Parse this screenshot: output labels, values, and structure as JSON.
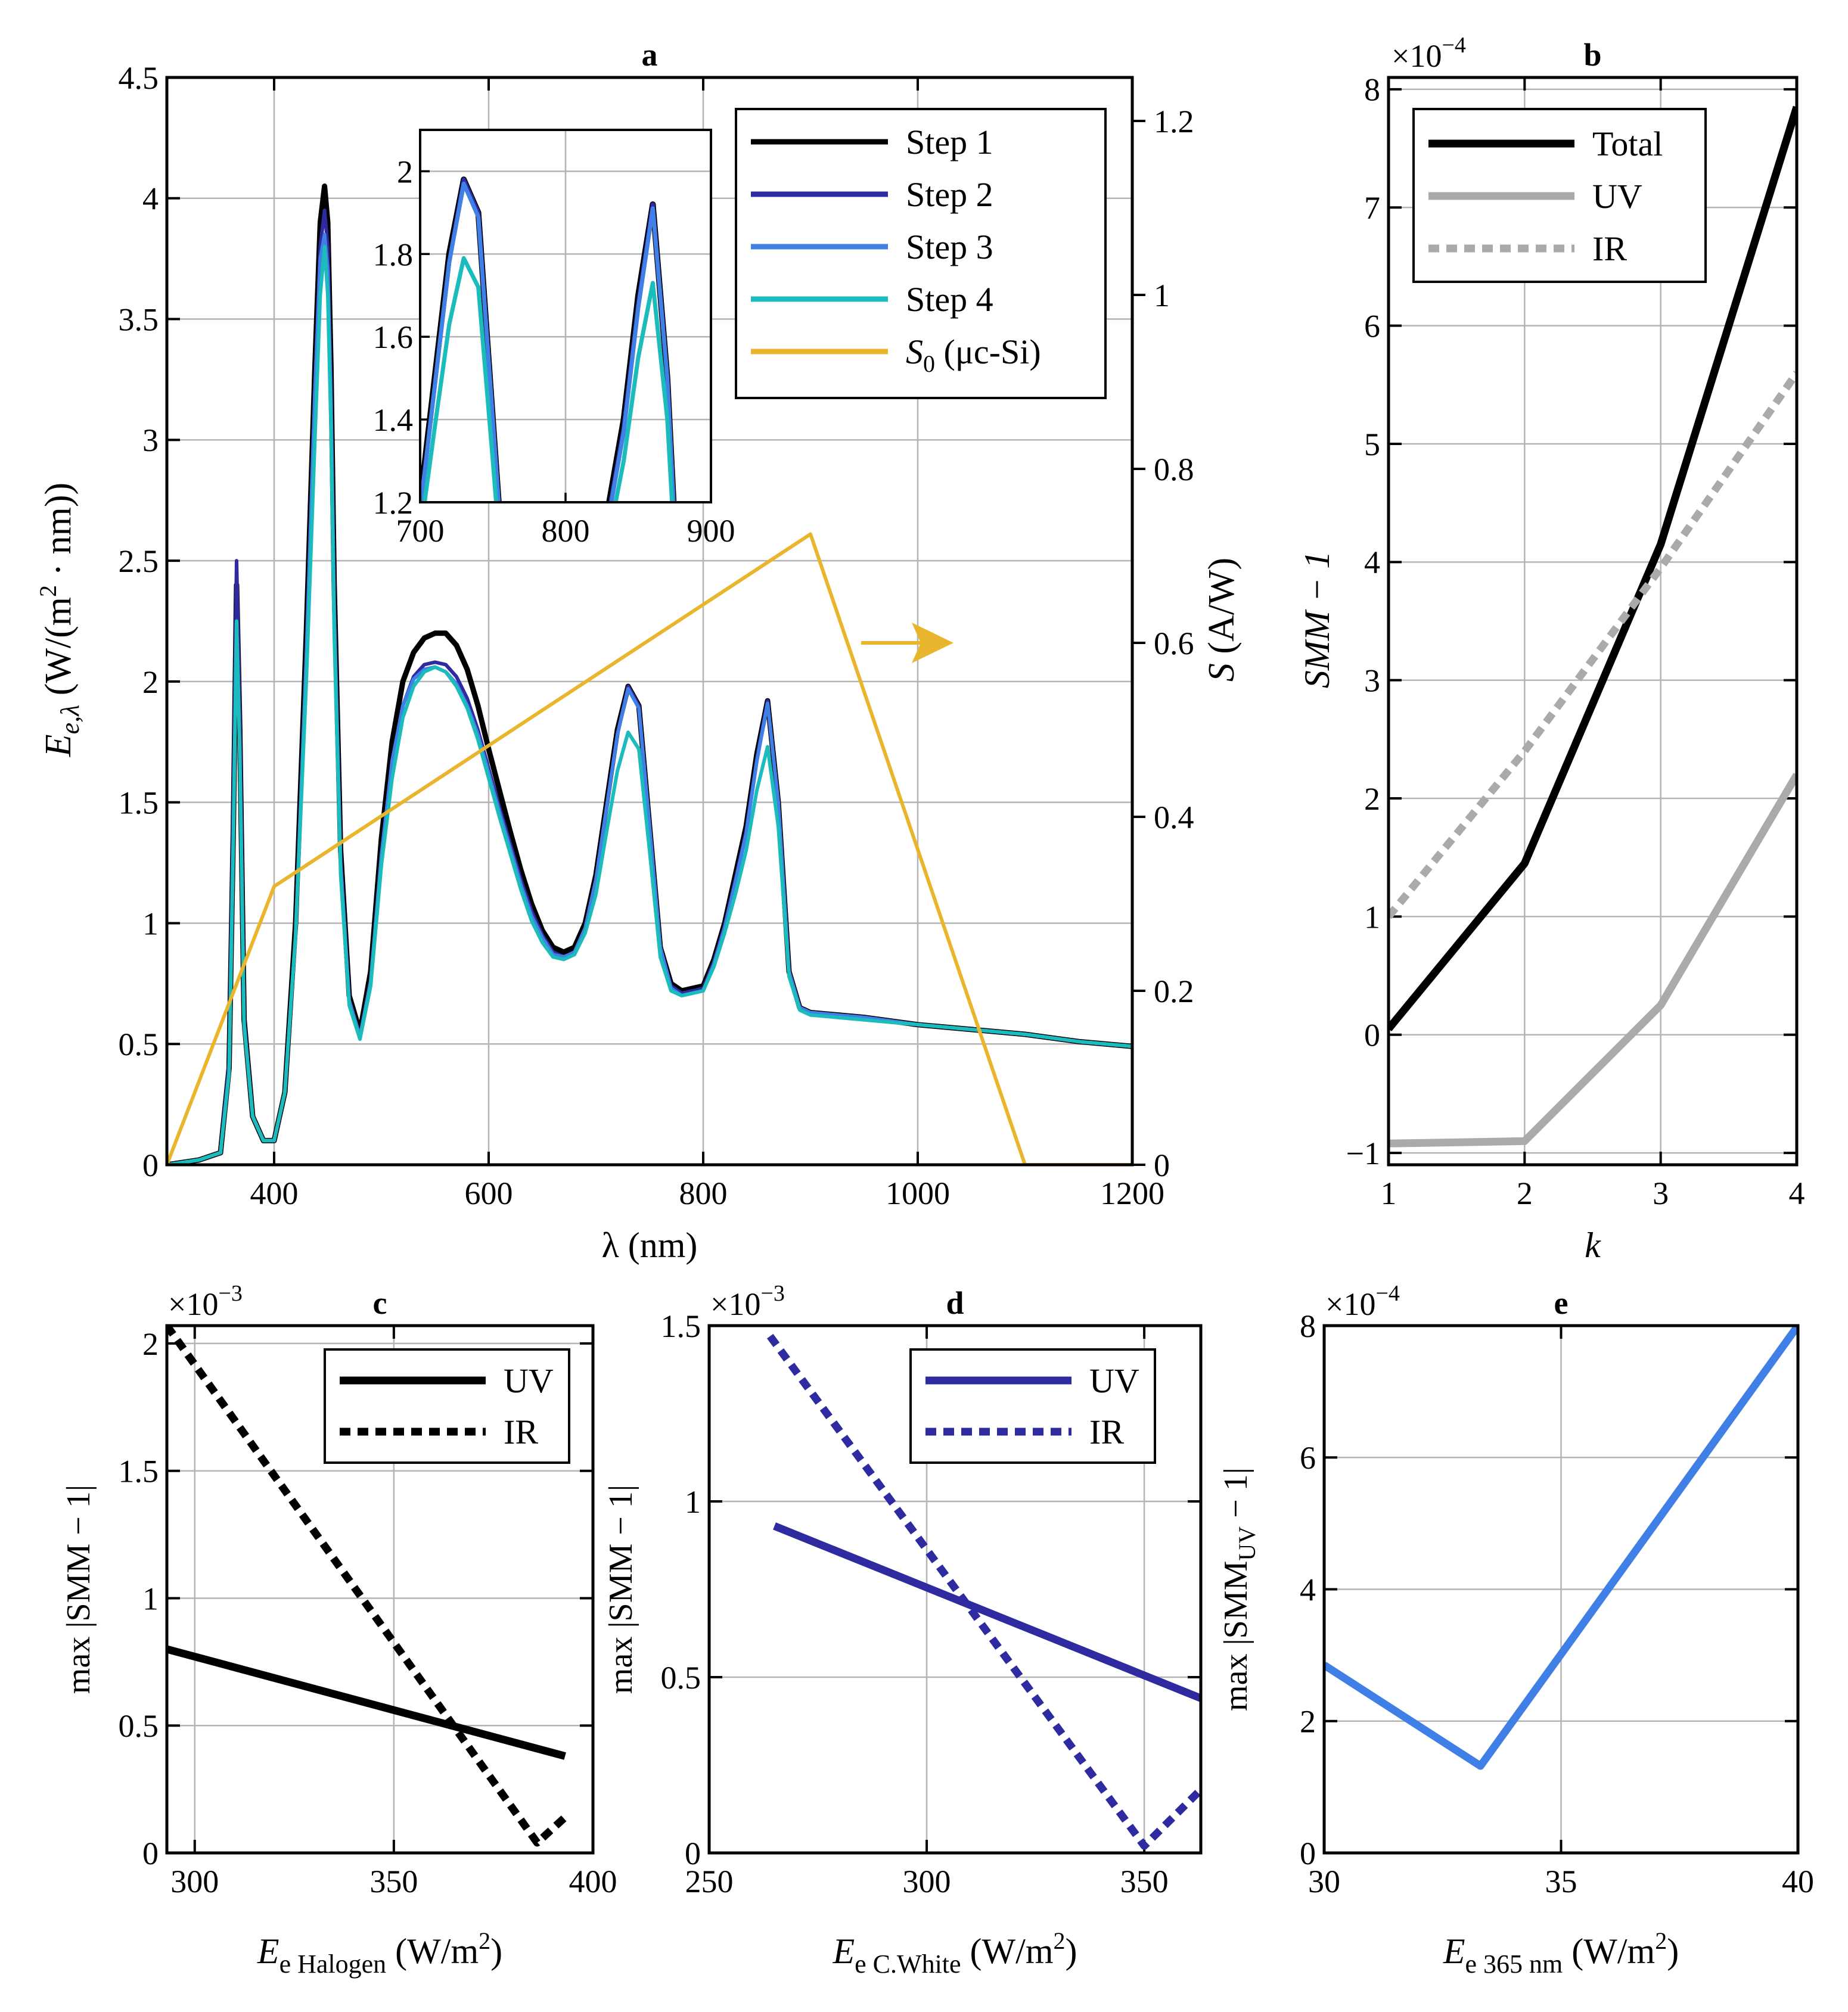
{
  "colors": {
    "step1": "#000000",
    "step2": "#2e2a9f",
    "step3": "#3f7fe6",
    "step4": "#1cbcbc",
    "s0": "#e8b52c",
    "total": "#000000",
    "uv_gray": "#aaaaaa",
    "ir_gray": "#aaaaaa",
    "grid": "#b4b4b4"
  },
  "chart_data": [
    {
      "panel": "a",
      "type": "line",
      "title": "a",
      "xlabel": "λ (nm)",
      "ylabel_main": "E",
      "ylabel_sub": "e,λ",
      "ylabel_rest": " (W/(m",
      "ylabel_sup": "2",
      "ylabel_tail": " · nm))",
      "ylabel_right_italic": "S",
      "ylabel_right_rest": " (A/W)",
      "xlim": [
        300,
        1200
      ],
      "ylim": [
        0,
        4.5
      ],
      "ylim_right": [
        0,
        1.25
      ],
      "xticks": [
        400,
        600,
        800,
        1000,
        1200
      ],
      "yticks": [
        0,
        0.5,
        1,
        1.5,
        2,
        2.5,
        3,
        3.5,
        4,
        4.5
      ],
      "yticks_right": [
        0,
        0.2,
        0.4,
        0.6,
        0.8,
        1,
        1.2
      ],
      "grid": true,
      "legend": "top-right",
      "series": [
        {
          "name": "Step 1",
          "color_key": "step1",
          "x": [
            300,
            330,
            350,
            358,
            362,
            365,
            368,
            372,
            380,
            390,
            400,
            410,
            420,
            430,
            438,
            443,
            447,
            450,
            453,
            456,
            462,
            470,
            480,
            490,
            500,
            510,
            520,
            530,
            540,
            550,
            560,
            570,
            580,
            590,
            600,
            610,
            620,
            630,
            640,
            650,
            660,
            670,
            680,
            690,
            700,
            710,
            720,
            730,
            740,
            750,
            760,
            770,
            780,
            790,
            800,
            810,
            820,
            830,
            840,
            850,
            860,
            870,
            880,
            890,
            900,
            950,
            1000,
            1050,
            1100,
            1150,
            1200
          ],
          "y": [
            0,
            0.02,
            0.05,
            0.4,
            1.4,
            2.4,
            1.8,
            0.6,
            0.2,
            0.1,
            0.1,
            0.3,
            1.0,
            2.2,
            3.3,
            3.9,
            4.05,
            3.9,
            3.3,
            2.4,
            1.3,
            0.7,
            0.55,
            0.8,
            1.35,
            1.75,
            2.0,
            2.12,
            2.18,
            2.2,
            2.2,
            2.15,
            2.05,
            1.9,
            1.72,
            1.55,
            1.38,
            1.22,
            1.08,
            0.97,
            0.9,
            0.88,
            0.9,
            1.0,
            1.2,
            1.5,
            1.8,
            1.98,
            1.9,
            1.4,
            0.9,
            0.75,
            0.72,
            0.73,
            0.74,
            0.85,
            1.0,
            1.2,
            1.4,
            1.7,
            1.92,
            1.5,
            0.8,
            0.65,
            0.63,
            0.61,
            0.58,
            0.56,
            0.54,
            0.51,
            0.49
          ]
        },
        {
          "name": "Step 2",
          "color_key": "step2",
          "x": [
            300,
            330,
            350,
            358,
            362,
            365,
            368,
            372,
            380,
            390,
            400,
            410,
            420,
            430,
            438,
            443,
            447,
            450,
            453,
            456,
            462,
            470,
            480,
            490,
            500,
            510,
            520,
            530,
            540,
            550,
            560,
            570,
            580,
            590,
            600,
            610,
            620,
            630,
            640,
            650,
            660,
            670,
            680,
            690,
            700,
            710,
            720,
            730,
            740,
            750,
            760,
            770,
            780,
            790,
            800,
            810,
            820,
            830,
            840,
            850,
            860,
            870,
            880,
            890,
            900,
            950,
            1000,
            1050,
            1100,
            1150,
            1200
          ],
          "y": [
            0,
            0.02,
            0.05,
            0.42,
            1.5,
            2.5,
            1.85,
            0.6,
            0.2,
            0.1,
            0.1,
            0.3,
            0.95,
            2.1,
            3.2,
            3.8,
            3.95,
            3.8,
            3.2,
            2.3,
            1.25,
            0.68,
            0.53,
            0.76,
            1.28,
            1.67,
            1.9,
            2.02,
            2.07,
            2.08,
            2.07,
            2.02,
            1.93,
            1.8,
            1.64,
            1.48,
            1.33,
            1.18,
            1.05,
            0.95,
            0.88,
            0.86,
            0.88,
            0.98,
            1.18,
            1.48,
            1.78,
            1.98,
            1.9,
            1.4,
            0.9,
            0.74,
            0.71,
            0.72,
            0.73,
            0.84,
            0.99,
            1.18,
            1.38,
            1.68,
            1.92,
            1.5,
            0.8,
            0.65,
            0.63,
            0.61,
            0.58,
            0.56,
            0.54,
            0.51,
            0.49
          ]
        },
        {
          "name": "Step 3",
          "color_key": "step3",
          "x": [
            300,
            330,
            350,
            358,
            362,
            365,
            368,
            372,
            380,
            390,
            400,
            410,
            420,
            430,
            438,
            443,
            447,
            450,
            453,
            456,
            462,
            470,
            480,
            490,
            500,
            510,
            520,
            530,
            540,
            550,
            560,
            570,
            580,
            590,
            600,
            610,
            620,
            630,
            640,
            650,
            660,
            670,
            680,
            690,
            700,
            710,
            720,
            730,
            740,
            750,
            760,
            770,
            780,
            790,
            800,
            810,
            820,
            830,
            840,
            850,
            860,
            870,
            880,
            890,
            900,
            950,
            1000,
            1050,
            1100,
            1150,
            1200
          ],
          "y": [
            0,
            0.02,
            0.05,
            0.38,
            1.35,
            2.25,
            1.7,
            0.58,
            0.2,
            0.1,
            0.1,
            0.3,
            0.95,
            2.1,
            3.2,
            3.75,
            3.85,
            3.7,
            3.15,
            2.3,
            1.25,
            0.68,
            0.53,
            0.76,
            1.28,
            1.67,
            1.9,
            2.01,
            2.05,
            2.06,
            2.04,
            1.99,
            1.9,
            1.78,
            1.62,
            1.46,
            1.31,
            1.16,
            1.03,
            0.94,
            0.87,
            0.86,
            0.88,
            0.98,
            1.18,
            1.48,
            1.78,
            1.97,
            1.89,
            1.4,
            0.9,
            0.73,
            0.7,
            0.71,
            0.72,
            0.83,
            0.98,
            1.17,
            1.37,
            1.67,
            1.91,
            1.5,
            0.8,
            0.65,
            0.63,
            0.61,
            0.58,
            0.56,
            0.54,
            0.51,
            0.49
          ]
        },
        {
          "name": "Step 4",
          "color_key": "step4",
          "x": [
            300,
            330,
            350,
            358,
            362,
            365,
            368,
            372,
            380,
            390,
            400,
            410,
            420,
            430,
            438,
            443,
            447,
            450,
            453,
            456,
            462,
            470,
            480,
            490,
            500,
            510,
            520,
            530,
            540,
            550,
            560,
            570,
            580,
            590,
            600,
            610,
            620,
            630,
            640,
            650,
            660,
            670,
            680,
            690,
            700,
            710,
            720,
            730,
            740,
            750,
            760,
            770,
            780,
            790,
            800,
            810,
            820,
            830,
            840,
            850,
            860,
            870,
            880,
            890,
            900,
            950,
            1000,
            1050,
            1100,
            1150,
            1200
          ],
          "y": [
            0,
            0.02,
            0.05,
            0.38,
            1.35,
            2.25,
            1.7,
            0.58,
            0.2,
            0.1,
            0.1,
            0.3,
            0.95,
            2.0,
            3.0,
            3.6,
            3.8,
            3.6,
            3.05,
            2.2,
            1.2,
            0.66,
            0.52,
            0.74,
            1.24,
            1.6,
            1.85,
            1.98,
            2.04,
            2.06,
            2.04,
            1.98,
            1.89,
            1.76,
            1.6,
            1.44,
            1.29,
            1.14,
            1.01,
            0.92,
            0.86,
            0.85,
            0.87,
            0.96,
            1.12,
            1.38,
            1.63,
            1.79,
            1.72,
            1.3,
            0.86,
            0.72,
            0.7,
            0.71,
            0.72,
            0.82,
            0.96,
            1.12,
            1.3,
            1.55,
            1.73,
            1.4,
            0.78,
            0.64,
            0.62,
            0.6,
            0.58,
            0.56,
            0.54,
            0.51,
            0.49
          ]
        }
      ],
      "right_series": {
        "name_italic": "S",
        "name_sub": "0",
        "name_rest": "  (μc-Si)",
        "color_key": "s0",
        "x": [
          300,
          400,
          900,
          1100,
          1200
        ],
        "y": [
          0,
          0.32,
          0.725,
          0,
          0
        ]
      },
      "inset": {
        "xlim": [
          700,
          900
        ],
        "ylim": [
          1.2,
          2.1
        ],
        "xticks": [
          700,
          800,
          900
        ],
        "yticks": [
          1.2,
          1.4,
          1.6,
          1.8,
          2
        ]
      }
    },
    {
      "panel": "b",
      "type": "line",
      "title": "b",
      "xlabel": "k",
      "ylabel": "SMM − 1",
      "multiplier_base": "×10",
      "multiplier_exp": "−4",
      "xlim": [
        1,
        4
      ],
      "ylim": [
        -1.1,
        8.1
      ],
      "xticks": [
        1,
        2,
        3,
        4
      ],
      "yticks": [
        -1,
        0,
        1,
        2,
        3,
        4,
        5,
        6,
        7,
        8
      ],
      "grid": true,
      "legend": "top-left",
      "series": [
        {
          "name": "Total",
          "color_key": "total",
          "style": "solid",
          "x": [
            1,
            2,
            3,
            4
          ],
          "y": [
            0.05,
            1.45,
            4.15,
            7.85
          ]
        },
        {
          "name": "UV",
          "color_key": "uv_gray",
          "style": "solid",
          "x": [
            1,
            2,
            3,
            4
          ],
          "y": [
            -0.92,
            -0.9,
            0.25,
            2.2
          ]
        },
        {
          "name": "IR",
          "color_key": "ir_gray",
          "style": "dotted",
          "x": [
            1,
            2,
            3,
            4
          ],
          "y": [
            1.0,
            2.4,
            3.95,
            5.6
          ]
        }
      ]
    },
    {
      "panel": "c",
      "type": "line",
      "title": "c",
      "xlabel_main": "E",
      "xlabel_sub": "e Halogen",
      "xlabel_rest": " (W/m",
      "xlabel_sup": "2",
      "xlabel_tail": ")",
      "ylabel": "max |SMM − 1|",
      "multiplier_base": "×10",
      "multiplier_exp": "−3",
      "xlim": [
        293,
        400
      ],
      "ylim": [
        0,
        2.07
      ],
      "xticks": [
        300,
        350,
        400
      ],
      "yticks": [
        0,
        0.5,
        1,
        1.5,
        2
      ],
      "grid": true,
      "legend": "top-right",
      "series": [
        {
          "name": "UV",
          "color_key": "step1",
          "style": "solid",
          "x": [
            293,
            393
          ],
          "y": [
            0.8,
            0.38
          ]
        },
        {
          "name": "IR",
          "color_key": "step1",
          "style": "dotted",
          "x": [
            293,
            386,
            393
          ],
          "y": [
            2.07,
            0.04,
            0.14
          ]
        }
      ]
    },
    {
      "panel": "d",
      "type": "line",
      "title": "d",
      "xlabel_main": "E",
      "xlabel_sub": "e C.White",
      "xlabel_rest": " (W/m",
      "xlabel_sup": "2",
      "xlabel_tail": ")",
      "ylabel": "max |SMM − 1|",
      "multiplier_base": "×10",
      "multiplier_exp": "−3",
      "xlim": [
        250,
        363
      ],
      "ylim": [
        0,
        1.5
      ],
      "xticks": [
        250,
        300,
        350
      ],
      "yticks": [
        0,
        0.5,
        1,
        1.5
      ],
      "grid": true,
      "legend": "top-right",
      "series": [
        {
          "name": "UV",
          "color_key": "step2",
          "style": "solid",
          "x": [
            265,
            363
          ],
          "y": [
            0.93,
            0.44
          ]
        },
        {
          "name": "IR",
          "color_key": "step2",
          "style": "dotted",
          "x": [
            264,
            350,
            363
          ],
          "y": [
            1.47,
            0.02,
            0.18
          ]
        }
      ]
    },
    {
      "panel": "e",
      "type": "line",
      "title": "e",
      "xlabel_main": "E",
      "xlabel_sub": "e 365 nm",
      "xlabel_rest": " (W/m",
      "xlabel_sup": "2",
      "xlabel_tail": ")",
      "ylabel": "max |SMM",
      "ylabel_sub": "UV",
      "ylabel_tail": " − 1|",
      "multiplier_base": "×10",
      "multiplier_exp": "−4",
      "xlim": [
        30,
        40
      ],
      "ylim": [
        0,
        8
      ],
      "xticks": [
        30,
        35,
        40
      ],
      "yticks": [
        0,
        2,
        4,
        6,
        8
      ],
      "grid": true,
      "series": [
        {
          "name": "",
          "color_key": "step3",
          "style": "solid",
          "x": [
            30,
            33.3,
            40
          ],
          "y": [
            2.85,
            1.32,
            8.0
          ]
        }
      ]
    }
  ]
}
